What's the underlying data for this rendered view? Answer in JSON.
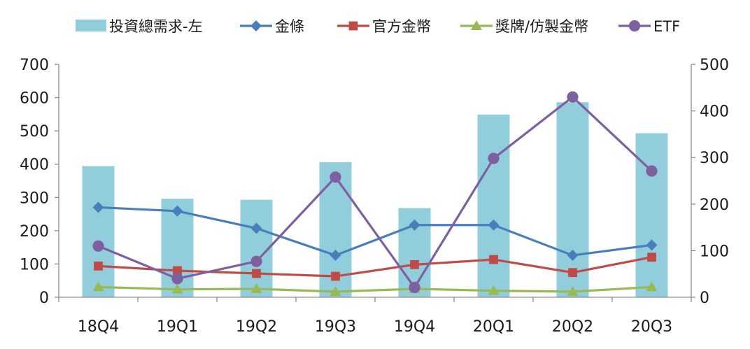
{
  "chart_data": {
    "type": "bar+line",
    "categories": [
      "18Q4",
      "19Q1",
      "19Q2",
      "19Q3",
      "19Q4",
      "20Q1",
      "20Q2",
      "20Q3"
    ],
    "left_axis": {
      "ylim": [
        0,
        700
      ],
      "ticks": [
        "0",
        "100",
        "200",
        "300",
        "400",
        "500",
        "600",
        "700"
      ]
    },
    "right_axis": {
      "ylim": [
        0,
        500
      ],
      "ticks": [
        "0",
        "100",
        "200",
        "300",
        "400",
        "500"
      ]
    },
    "legend_position": "top",
    "series": [
      {
        "name": "投資總需求-左",
        "kind": "bar",
        "axis": "left",
        "color": "#92cddc",
        "values": [
          394,
          296,
          293,
          406,
          268,
          549,
          586,
          493
        ]
      },
      {
        "name": "金條",
        "kind": "line",
        "marker": "diamond",
        "axis": "right",
        "color": "#4a7ebb",
        "values": [
          193,
          185,
          148,
          90,
          155,
          155,
          90,
          112
        ]
      },
      {
        "name": "官方金幣",
        "kind": "line",
        "marker": "square",
        "axis": "right",
        "color": "#be4b48",
        "values": [
          67,
          57,
          51,
          45,
          70,
          81,
          53,
          86
        ]
      },
      {
        "name": "獎牌/仿製金幣",
        "kind": "line",
        "marker": "triangle",
        "axis": "right",
        "color": "#98b954",
        "values": [
          22,
          17,
          18,
          12,
          18,
          14,
          12,
          22
        ]
      },
      {
        "name": "ETF",
        "kind": "line",
        "marker": "circle",
        "axis": "right",
        "color": "#7d60a0",
        "values": [
          110,
          40,
          77,
          258,
          21,
          298,
          430,
          271
        ]
      }
    ]
  }
}
